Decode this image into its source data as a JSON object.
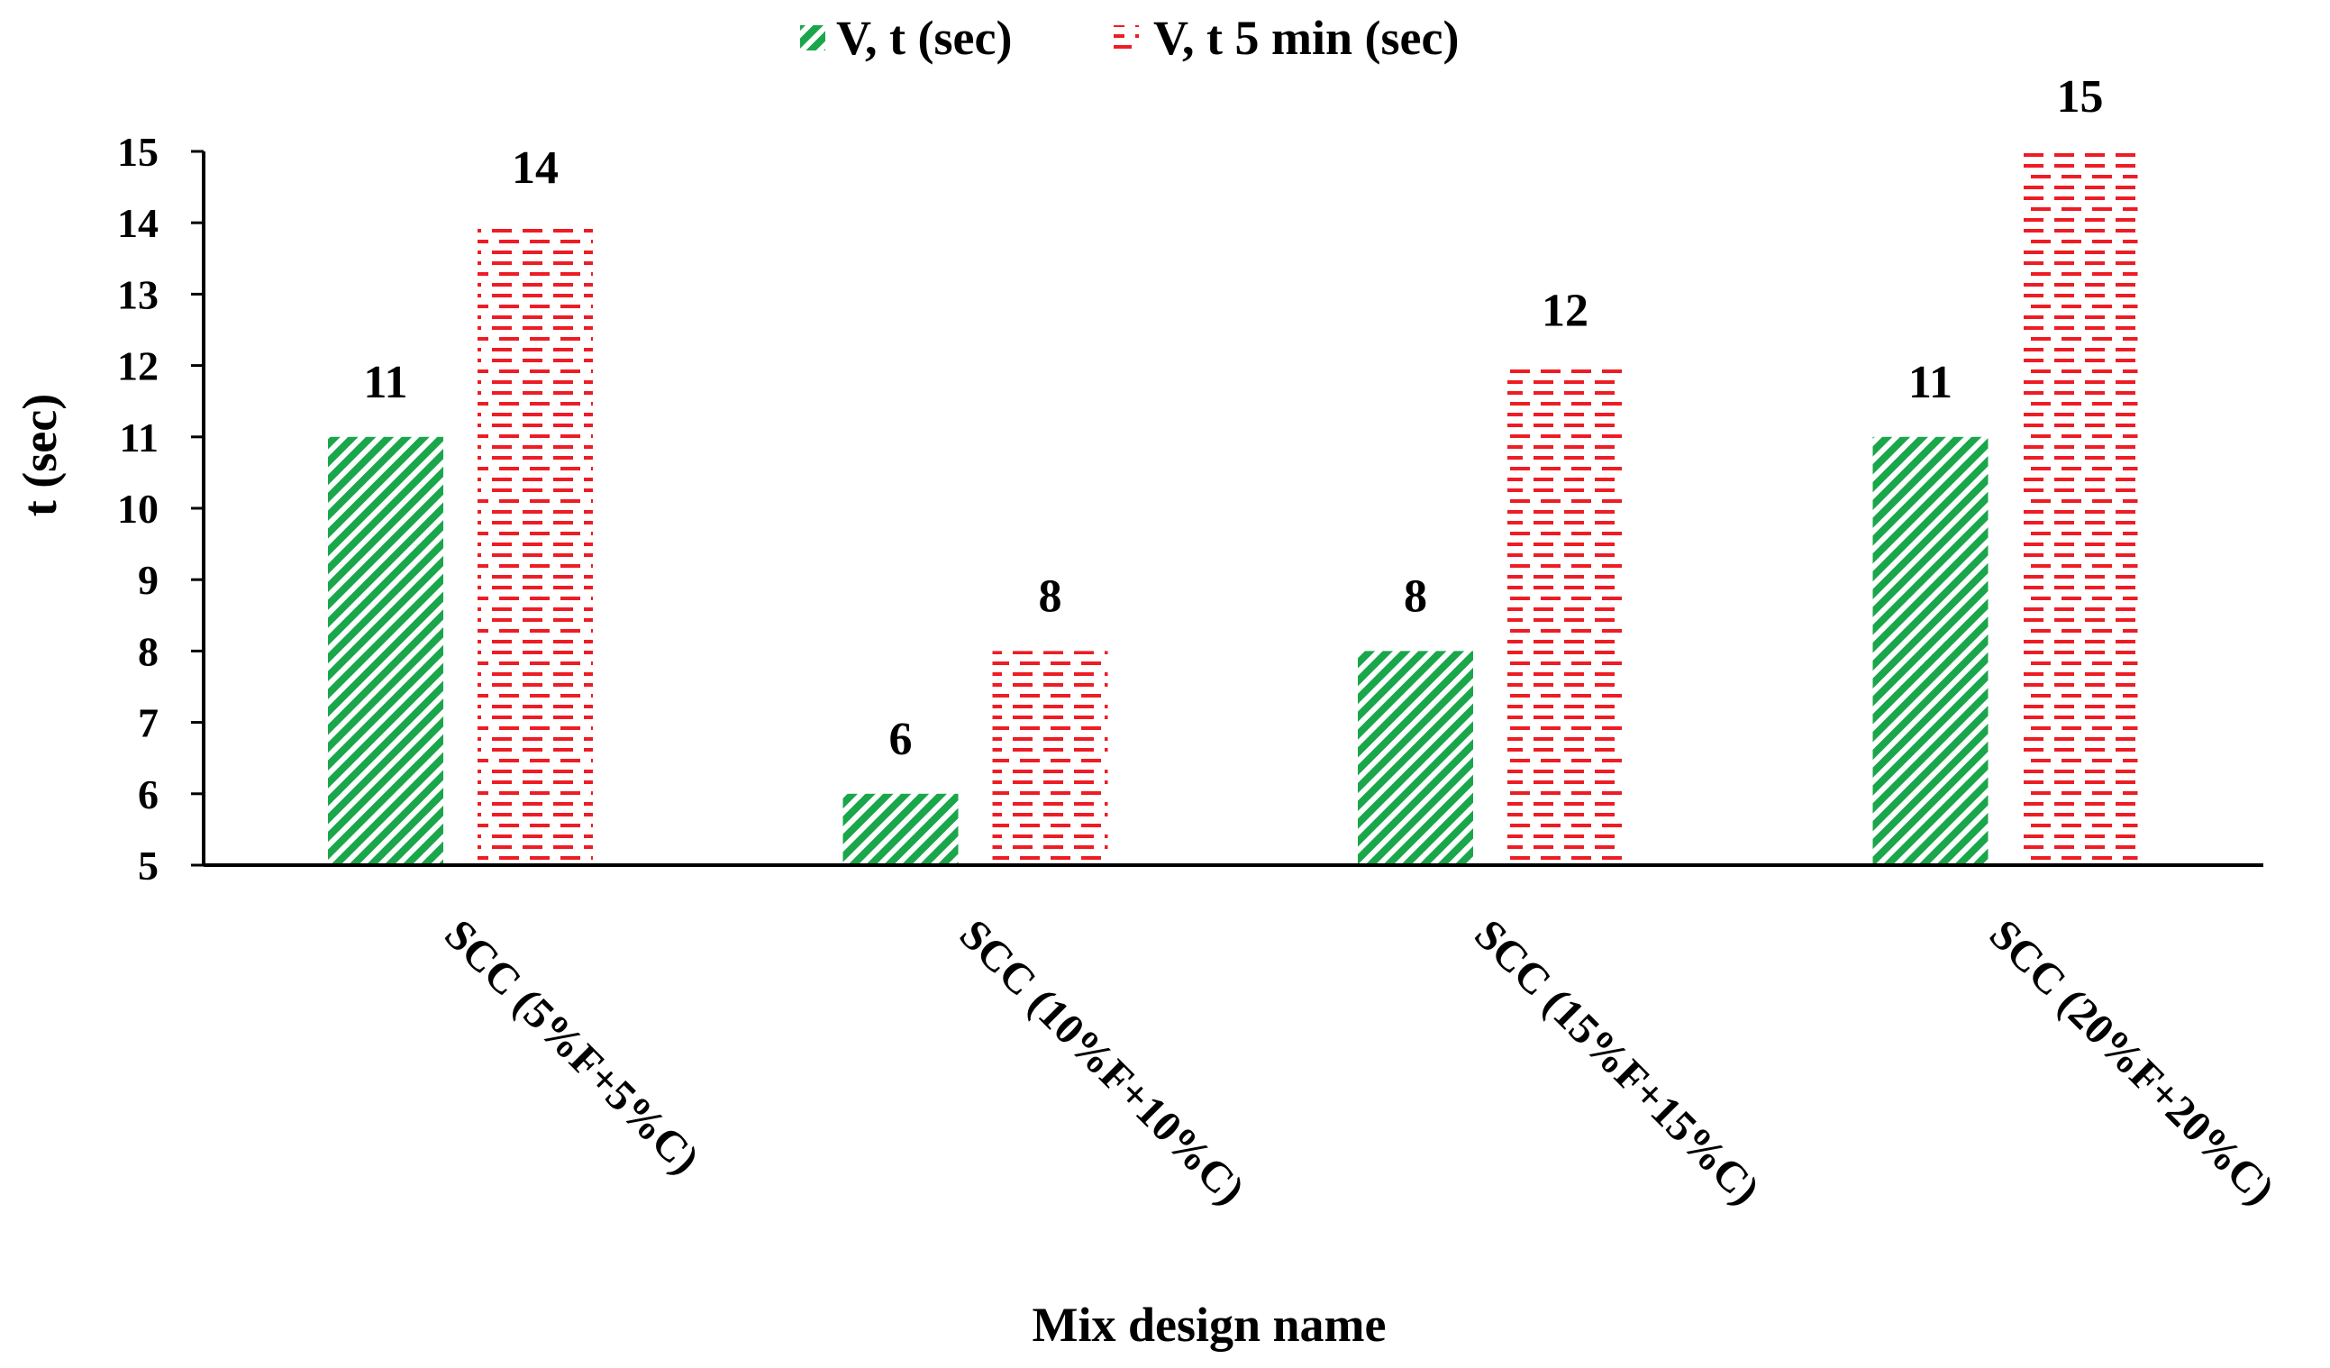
{
  "chart_data": {
    "type": "bar",
    "title": "",
    "xlabel": "Mix design name",
    "ylabel": "t (sec)",
    "ylim": [
      5,
      15
    ],
    "yticks": [
      5,
      6,
      7,
      8,
      9,
      10,
      11,
      12,
      13,
      14,
      15
    ],
    "grid": false,
    "legend_position": "top-center",
    "categories": [
      "SCC (5%F+5%C)",
      "SCC (10%F+10%C)",
      "SCC (15%F+15%C)",
      "SCC (20%F+20%C)"
    ],
    "series": [
      {
        "name": "V, t (sec)",
        "values": [
          11,
          6,
          8,
          11
        ],
        "color": "#1aa64a",
        "pattern": "diagonal-stripes"
      },
      {
        "name": "V, t 5 min (sec)",
        "values": [
          14,
          8,
          12,
          15
        ],
        "color": "#ee1c24",
        "pattern": "dashes"
      }
    ]
  }
}
